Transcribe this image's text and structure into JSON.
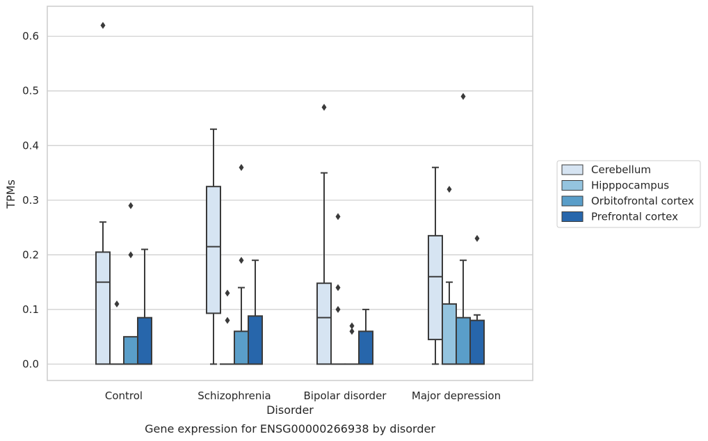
{
  "chart_data": {
    "type": "box",
    "title": "Gene expression for ENSG00000266938 by disorder",
    "xlabel": "Disorder",
    "ylabel": "TPMs",
    "ylim": [
      -0.03,
      0.655
    ],
    "yticks": [
      0.0,
      0.1,
      0.2,
      0.3,
      0.4,
      0.5,
      0.6
    ],
    "ytick_labels": [
      "0.0",
      "0.1",
      "0.2",
      "0.3",
      "0.4",
      "0.5",
      "0.6"
    ],
    "grid": "horizontal",
    "legend_position": "right",
    "categories": [
      "Control",
      "Schizophrenia",
      "Bipolar disorder",
      "Major depression"
    ],
    "colors": {
      "series": [
        "#d6e4f2",
        "#94c4df",
        "#5a9ec9",
        "#2766ab"
      ],
      "box_edge": "#3a3a3a",
      "grid": "#cccccc",
      "frame": "#cccccc"
    },
    "series": [
      {
        "name": "Cerebellum",
        "boxes": [
          {
            "min": 0.0,
            "q1": 0.0,
            "median": 0.15,
            "q3": 0.205,
            "max": 0.26,
            "outliers": [
              0.62
            ]
          },
          {
            "min": 0.0,
            "q1": 0.093,
            "median": 0.215,
            "q3": 0.325,
            "max": 0.43,
            "outliers": []
          },
          {
            "min": 0.0,
            "q1": 0.0,
            "median": 0.085,
            "q3": 0.148,
            "max": 0.35,
            "outliers": [
              0.47
            ]
          },
          {
            "min": 0.0,
            "q1": 0.045,
            "median": 0.16,
            "q3": 0.235,
            "max": 0.36,
            "outliers": []
          }
        ]
      },
      {
        "name": "Hipppocampus",
        "boxes": [
          {
            "min": 0.0,
            "q1": 0.0,
            "median": 0.0,
            "q3": 0.0,
            "max": 0.0,
            "outliers": [
              0.11
            ]
          },
          {
            "min": 0.0,
            "q1": 0.0,
            "median": 0.0,
            "q3": 0.0,
            "max": 0.0,
            "outliers": [
              0.13,
              0.08
            ]
          },
          {
            "min": 0.0,
            "q1": 0.0,
            "median": 0.0,
            "q3": 0.0,
            "max": 0.0,
            "outliers": [
              0.27,
              0.14,
              0.1
            ]
          },
          {
            "min": 0.0,
            "q1": 0.0,
            "median": 0.0,
            "q3": 0.11,
            "max": 0.15,
            "outliers": [
              0.32
            ]
          }
        ]
      },
      {
        "name": "Orbitofrontal cortex",
        "boxes": [
          {
            "min": 0.0,
            "q1": 0.0,
            "median": 0.0,
            "q3": 0.05,
            "max": 0.05,
            "outliers": [
              0.29,
              0.2
            ]
          },
          {
            "min": 0.0,
            "q1": 0.0,
            "median": 0.0,
            "q3": 0.06,
            "max": 0.14,
            "outliers": [
              0.36,
              0.19
            ]
          },
          {
            "min": 0.0,
            "q1": 0.0,
            "median": 0.0,
            "q3": 0.0,
            "max": 0.0,
            "outliers": [
              0.07,
              0.06
            ]
          },
          {
            "min": 0.0,
            "q1": 0.0,
            "median": 0.0,
            "q3": 0.085,
            "max": 0.19,
            "outliers": [
              0.49
            ]
          }
        ]
      },
      {
        "name": "Prefrontal cortex",
        "boxes": [
          {
            "min": 0.0,
            "q1": 0.0,
            "median": 0.0,
            "q3": 0.085,
            "max": 0.21,
            "outliers": []
          },
          {
            "min": 0.0,
            "q1": 0.0,
            "median": 0.0,
            "q3": 0.088,
            "max": 0.19,
            "outliers": []
          },
          {
            "min": 0.0,
            "q1": 0.0,
            "median": 0.0,
            "q3": 0.06,
            "max": 0.1,
            "outliers": []
          },
          {
            "min": 0.0,
            "q1": 0.0,
            "median": 0.0,
            "q3": 0.08,
            "max": 0.09,
            "outliers": [
              0.23
            ]
          }
        ]
      }
    ]
  }
}
